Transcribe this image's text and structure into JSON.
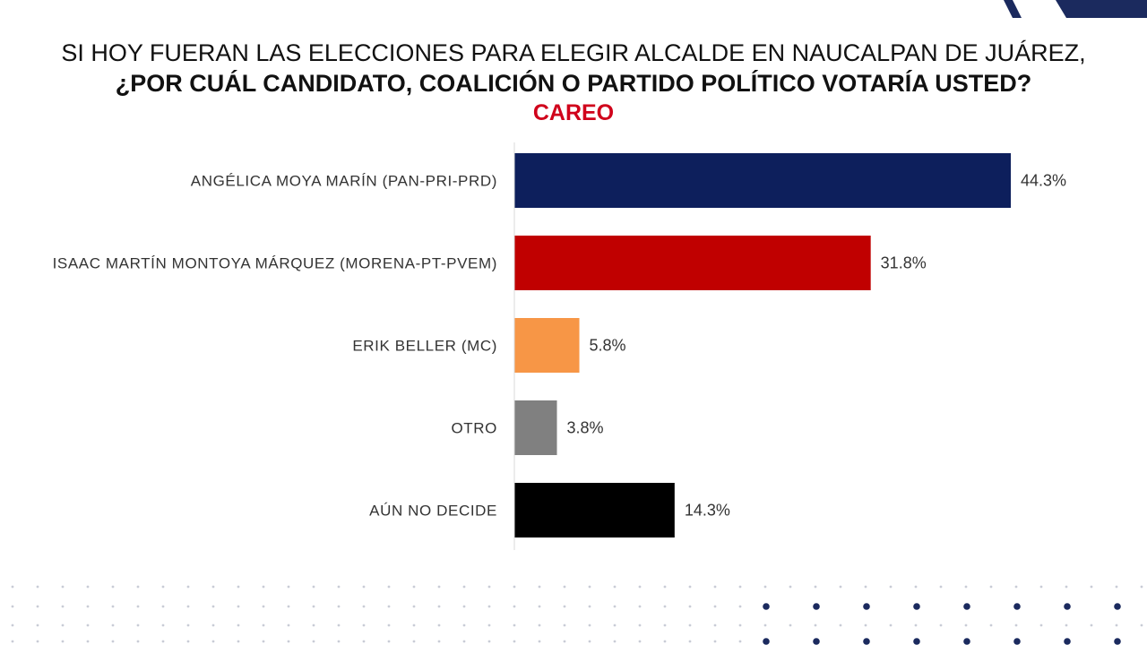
{
  "title": {
    "line1": "SI HOY FUERAN LAS ELECCIONES PARA ELEGIR ALCALDE EN NAUCALPAN DE JUÁREZ,",
    "line2": "¿POR CUÁL CANDIDATO, COALICIÓN O PARTIDO POLÍTICO VOTARÍA USTED?",
    "line3": "CAREO",
    "line3_color": "#d0021b"
  },
  "colors": {
    "corner_navy": "#1b2a5e",
    "dots": "#c9ccd6",
    "dots_dark": "#1b2a5e"
  },
  "chart_data": {
    "type": "bar",
    "orientation": "horizontal",
    "categories": [
      "ANGÉLICA MOYA MARÍN (PAN-PRI-PRD)",
      "ISAAC MARTÍN MONTOYA MÁRQUEZ (MORENA-PT-PVEM)",
      "ERIK BELLER (MC)",
      "OTRO",
      "AÚN NO DECIDE"
    ],
    "values": [
      44.3,
      31.8,
      5.8,
      3.8,
      14.3
    ],
    "value_labels": [
      "44.3%",
      "31.8%",
      "5.8%",
      "3.8%",
      "14.3%"
    ],
    "bar_colors": [
      "#0d1f5c",
      "#c00000",
      "#f79646",
      "#808080",
      "#000000"
    ],
    "xlim": [
      0,
      50
    ],
    "grid": false,
    "legend": "none"
  }
}
